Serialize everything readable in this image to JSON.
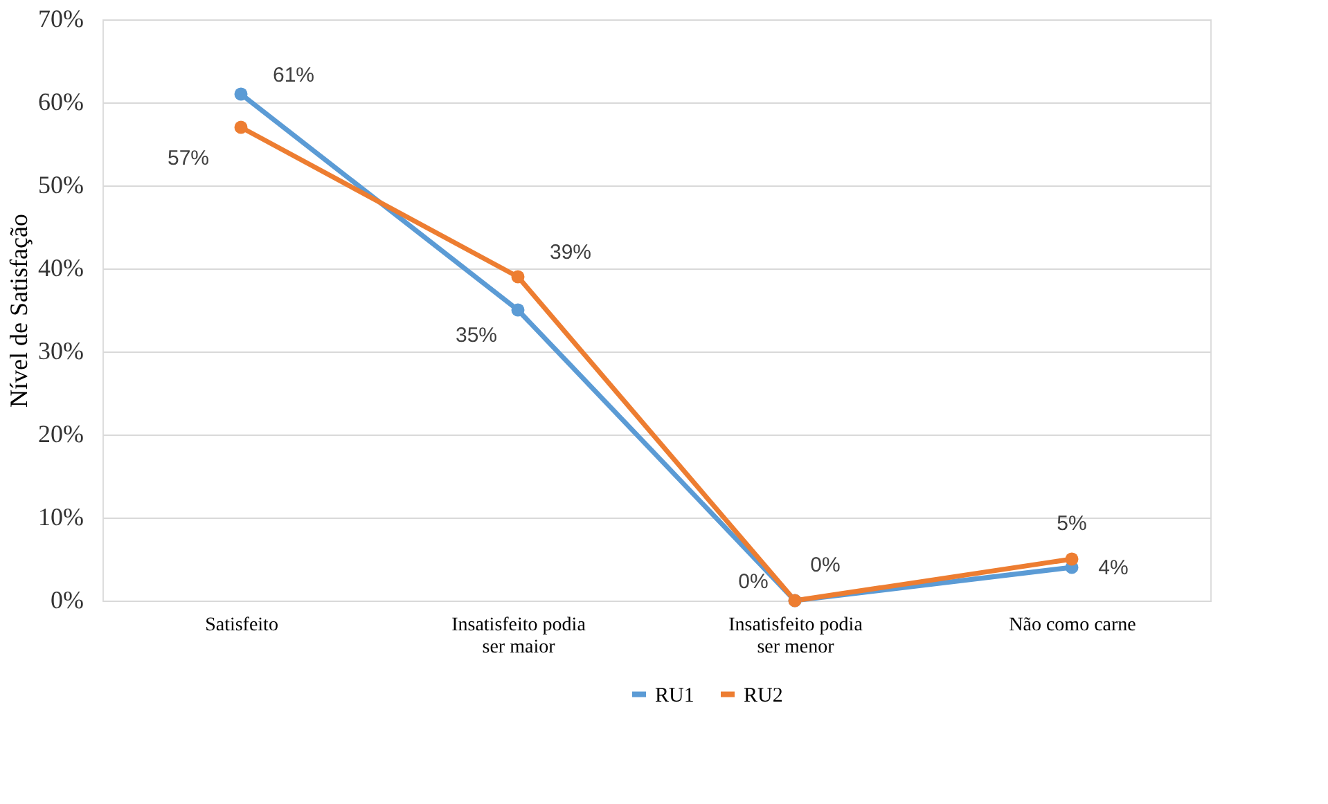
{
  "chart_data": {
    "type": "line",
    "ylabel": "Nível de Satisfação",
    "categories": [
      "Satisfeito",
      "Insatisfeito podia ser maior",
      "Insatisfeito podia ser menor",
      "Não como carne"
    ],
    "series": [
      {
        "name": "RU1",
        "color": "#5b9bd5",
        "values": [
          61,
          35,
          0,
          4
        ],
        "value_labels": [
          "61%",
          "35%",
          "0%",
          "4%"
        ]
      },
      {
        "name": "RU2",
        "color": "#ed7d31",
        "values": [
          57,
          39,
          0,
          5
        ],
        "value_labels": [
          "57%",
          "39%",
          "0%",
          "5%"
        ]
      }
    ],
    "ylim": [
      0,
      70
    ],
    "yticks": [
      {
        "value": 0,
        "label": "0%"
      },
      {
        "value": 10,
        "label": "10%"
      },
      {
        "value": 20,
        "label": "20%"
      },
      {
        "value": 30,
        "label": "30%"
      },
      {
        "value": 40,
        "label": "40%"
      },
      {
        "value": 50,
        "label": "50%"
      },
      {
        "value": 60,
        "label": "60%"
      },
      {
        "value": 70,
        "label": "70%"
      }
    ],
    "grid": "y",
    "legend": "bottom",
    "marker": "circle",
    "line_style": "solid"
  }
}
